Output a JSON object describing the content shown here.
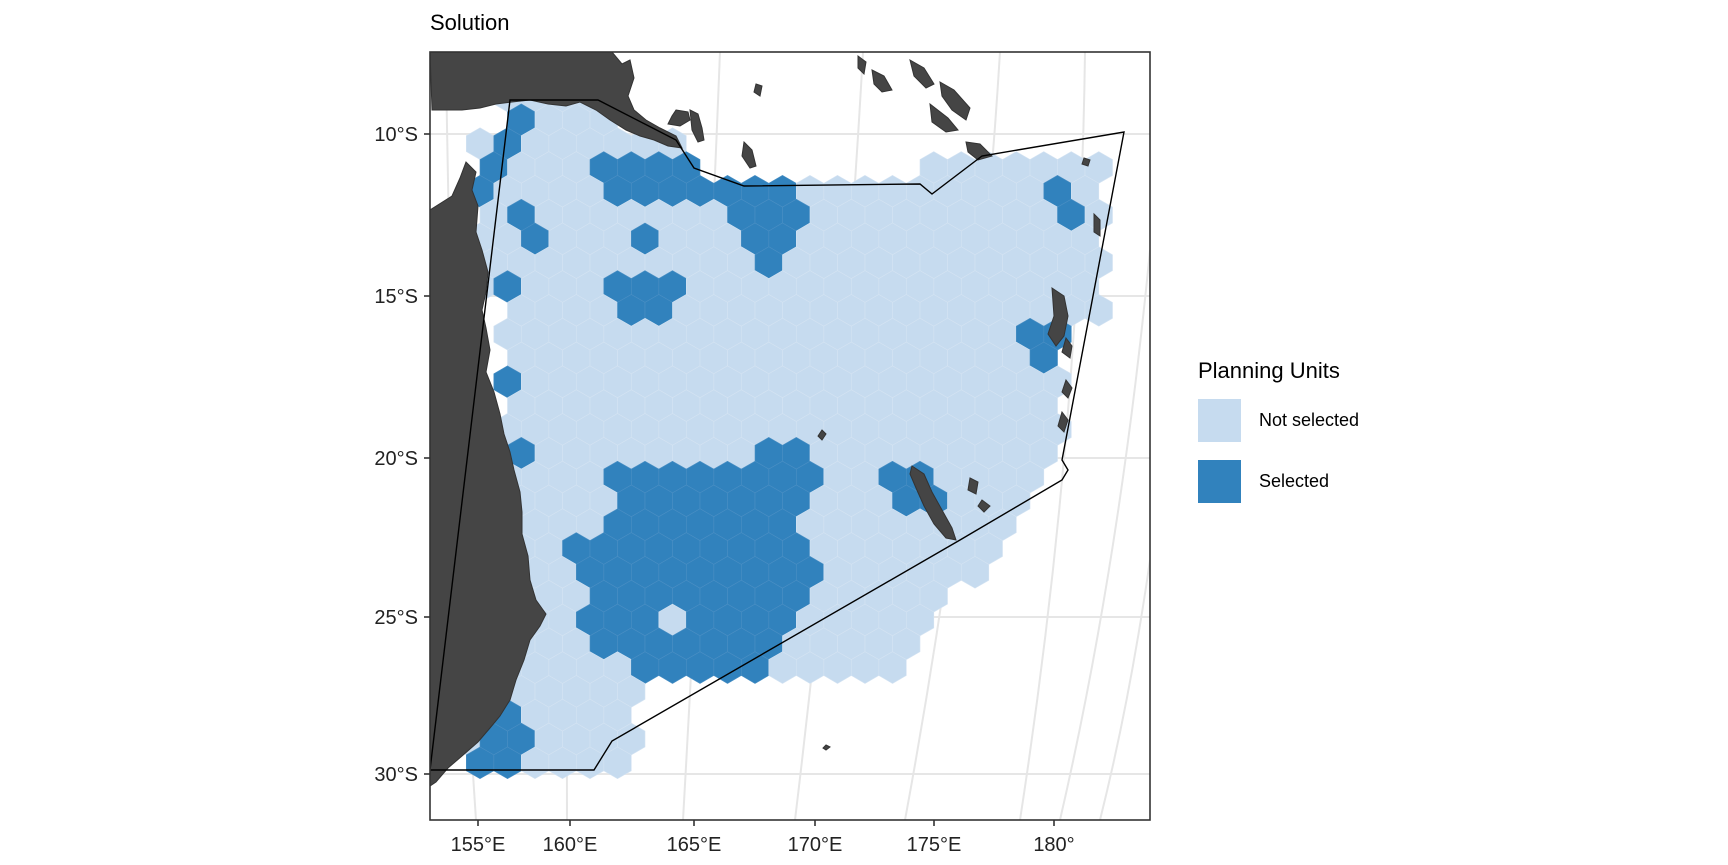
{
  "title": "Solution",
  "axes": {
    "x_ticks": [
      "155°E",
      "160°E",
      "165°E",
      "170°E",
      "175°E",
      "180°"
    ],
    "y_ticks": [
      "10°S",
      "15°S",
      "20°S",
      "25°S",
      "30°S"
    ]
  },
  "legend": {
    "title": "Planning Units",
    "items": [
      {
        "label": "Not selected",
        "color": "#c6dbef"
      },
      {
        "label": "Selected",
        "color": "#3182bd"
      }
    ]
  },
  "colors": {
    "land": "#454545",
    "not_selected": "#c6dbef",
    "selected": "#3182bd",
    "boundary": "#000000",
    "graticule": "#e6e6e6"
  },
  "chart_data": {
    "type": "map",
    "projection": "projected equal-area (curved graticule)",
    "layers": [
      "land",
      "planning-unit-hexagons",
      "study-area-boundary"
    ],
    "x_range": [
      "155°E",
      "180°"
    ],
    "y_range": [
      "10°S",
      "30°S"
    ],
    "grid": true,
    "legend_position": "right"
  }
}
